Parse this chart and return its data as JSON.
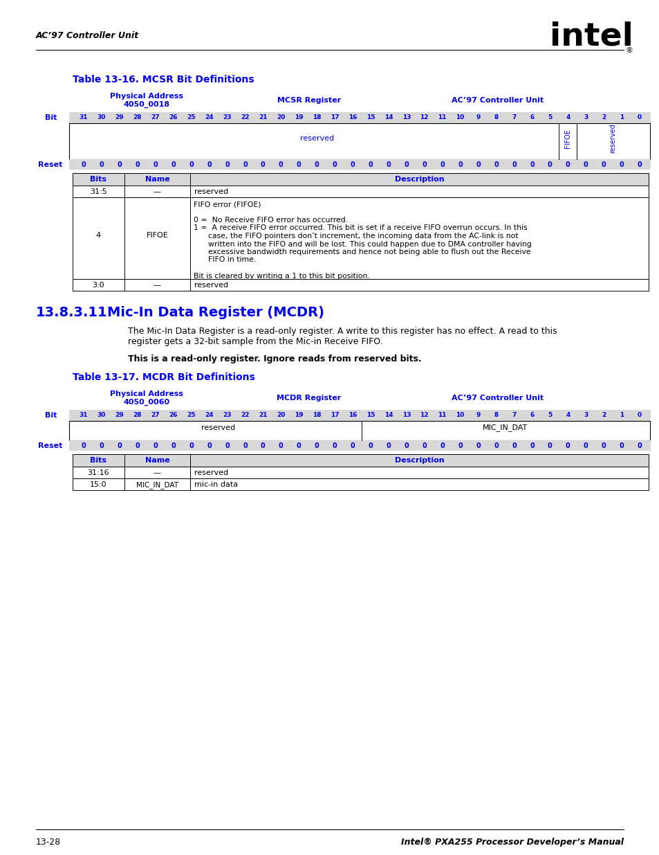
{
  "page_header_left": "AC’97 Controller Unit",
  "page_footer_left": "13-28",
  "page_footer_right": "Intel® PXA255 Processor Developer’s Manual",
  "table1_title": "Table 13-16. MCSR Bit Definitions",
  "table1_phys_addr_line1": "Physical Address",
  "table1_phys_addr_line2": "4050_0018",
  "table1_reg": "MCSR Register",
  "table1_unit": "AC’97 Controller Unit",
  "table2_title": "Table 13-17. MCDR Bit Definitions",
  "table2_phys_addr_line1": "Physical Address",
  "table2_phys_addr_line2": "4050_0060",
  "table2_reg": "MCDR Register",
  "table2_unit": "AC’97 Controller Unit",
  "section_title_num": "13.8.3.11",
  "section_title_text": "Mic-In Data Register (MCDR)",
  "section_body1": "The Mic-In Data Register is a read-only register. A write to this register has no effect. A read to this",
  "section_body2": "register gets a 32-bit sample from the Mic-in Receive FIFO.",
  "section_note": "This is a read-only register. Ignore reads from reserved bits.",
  "blue": "#0000EE",
  "black": "#000000",
  "gray_bg": "#D8D8D8",
  "white": "#FFFFFF",
  "bit_numbers": [
    "31",
    "30",
    "29",
    "28",
    "27",
    "26",
    "25",
    "24",
    "23",
    "22",
    "21",
    "20",
    "19",
    "18",
    "17",
    "16",
    "15",
    "14",
    "13",
    "12",
    "11",
    "10",
    "9",
    "8",
    "7",
    "6",
    "5",
    "4",
    "3",
    "2",
    "1",
    "0"
  ],
  "reset_zeros": [
    "0",
    "0",
    "0",
    "0",
    "0",
    "0",
    "0",
    "0",
    "0",
    "0",
    "0",
    "0",
    "0",
    "0",
    "0",
    "0",
    "0",
    "0",
    "0",
    "0",
    "0",
    "0",
    "0",
    "0",
    "0",
    "0",
    "0",
    "0",
    "0",
    "0",
    "0",
    "0"
  ],
  "fifoe_desc_lines": [
    "FIFO error (FIFOE)",
    "",
    "0 =  No Receive FIFO error has occurred.",
    "1 =  A receive FIFO error occurred. This bit is set if a receive FIFO overrun occurs. In this",
    "      case, the FIFO pointers don’t increment, the incoming data from the AC-link is not",
    "      written into the FIFO and will be lost. This could happen due to DMA controller having",
    "      excessive bandwidth requirements and hence not being able to flush out the Receive",
    "      FIFO in time.",
    "",
    "Bit is cleared by writing a 1 to this bit position."
  ]
}
